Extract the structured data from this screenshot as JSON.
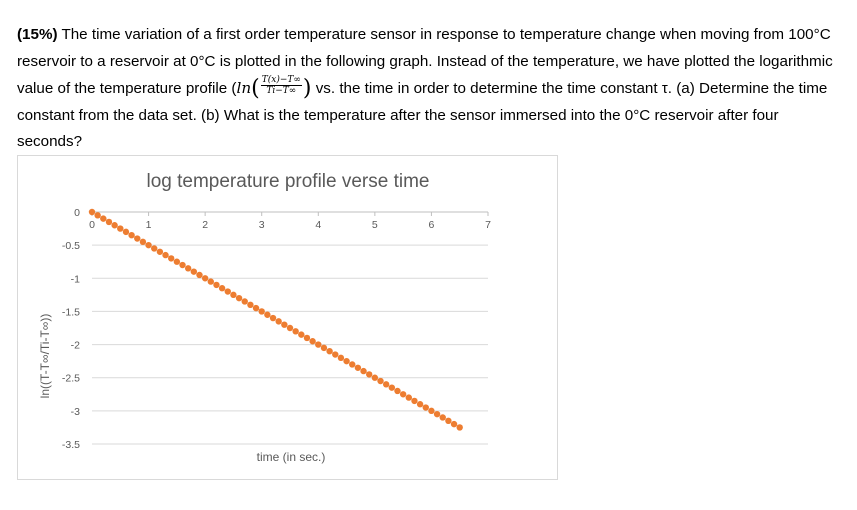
{
  "question": {
    "weight": "(15%)",
    "text1": " The time variation of a first order temperature sensor in response to temperature change when moving from 100°C reservoir to a reservoir at 0°C is plotted in the following graph.  Instead of the temperature, we have plotted the logarithmic value of the temperature profile (",
    "ln": "ln",
    "frac_num": "T(x)−T∞",
    "frac_den": "Ti−T∞",
    "text2": " vs. the time in order to determine the time constant τ.  (a) Determine the time constant from the data set.  (b) What is the temperature after the sensor immersed into the 0°C reservoir after four seconds?"
  },
  "colors": {
    "series": "#ED7D31",
    "grid": "#d9d9d9",
    "text": "#595959"
  },
  "chart_data": {
    "type": "scatter",
    "title": "log temperature profile verse time",
    "xlabel": "time (in sec.)",
    "ylabel": "ln((T-T∞/Ti-T∞))",
    "xlim": [
      0,
      7
    ],
    "ylim": [
      -3.5,
      0
    ],
    "x_ticks": [
      "0",
      "1",
      "2",
      "3",
      "4",
      "5",
      "6",
      "7"
    ],
    "y_ticks": [
      "0",
      "-0.5",
      "-1",
      "-1.5",
      "-2",
      "-2.5",
      "-3",
      "-3.5"
    ],
    "grid": true,
    "x_axis_position": "top (y = 0)",
    "series": [
      {
        "x_start": 0,
        "x_end": 6.5,
        "x_step": 0.1,
        "slope": -0.5,
        "intercept": 0
      }
    ]
  }
}
